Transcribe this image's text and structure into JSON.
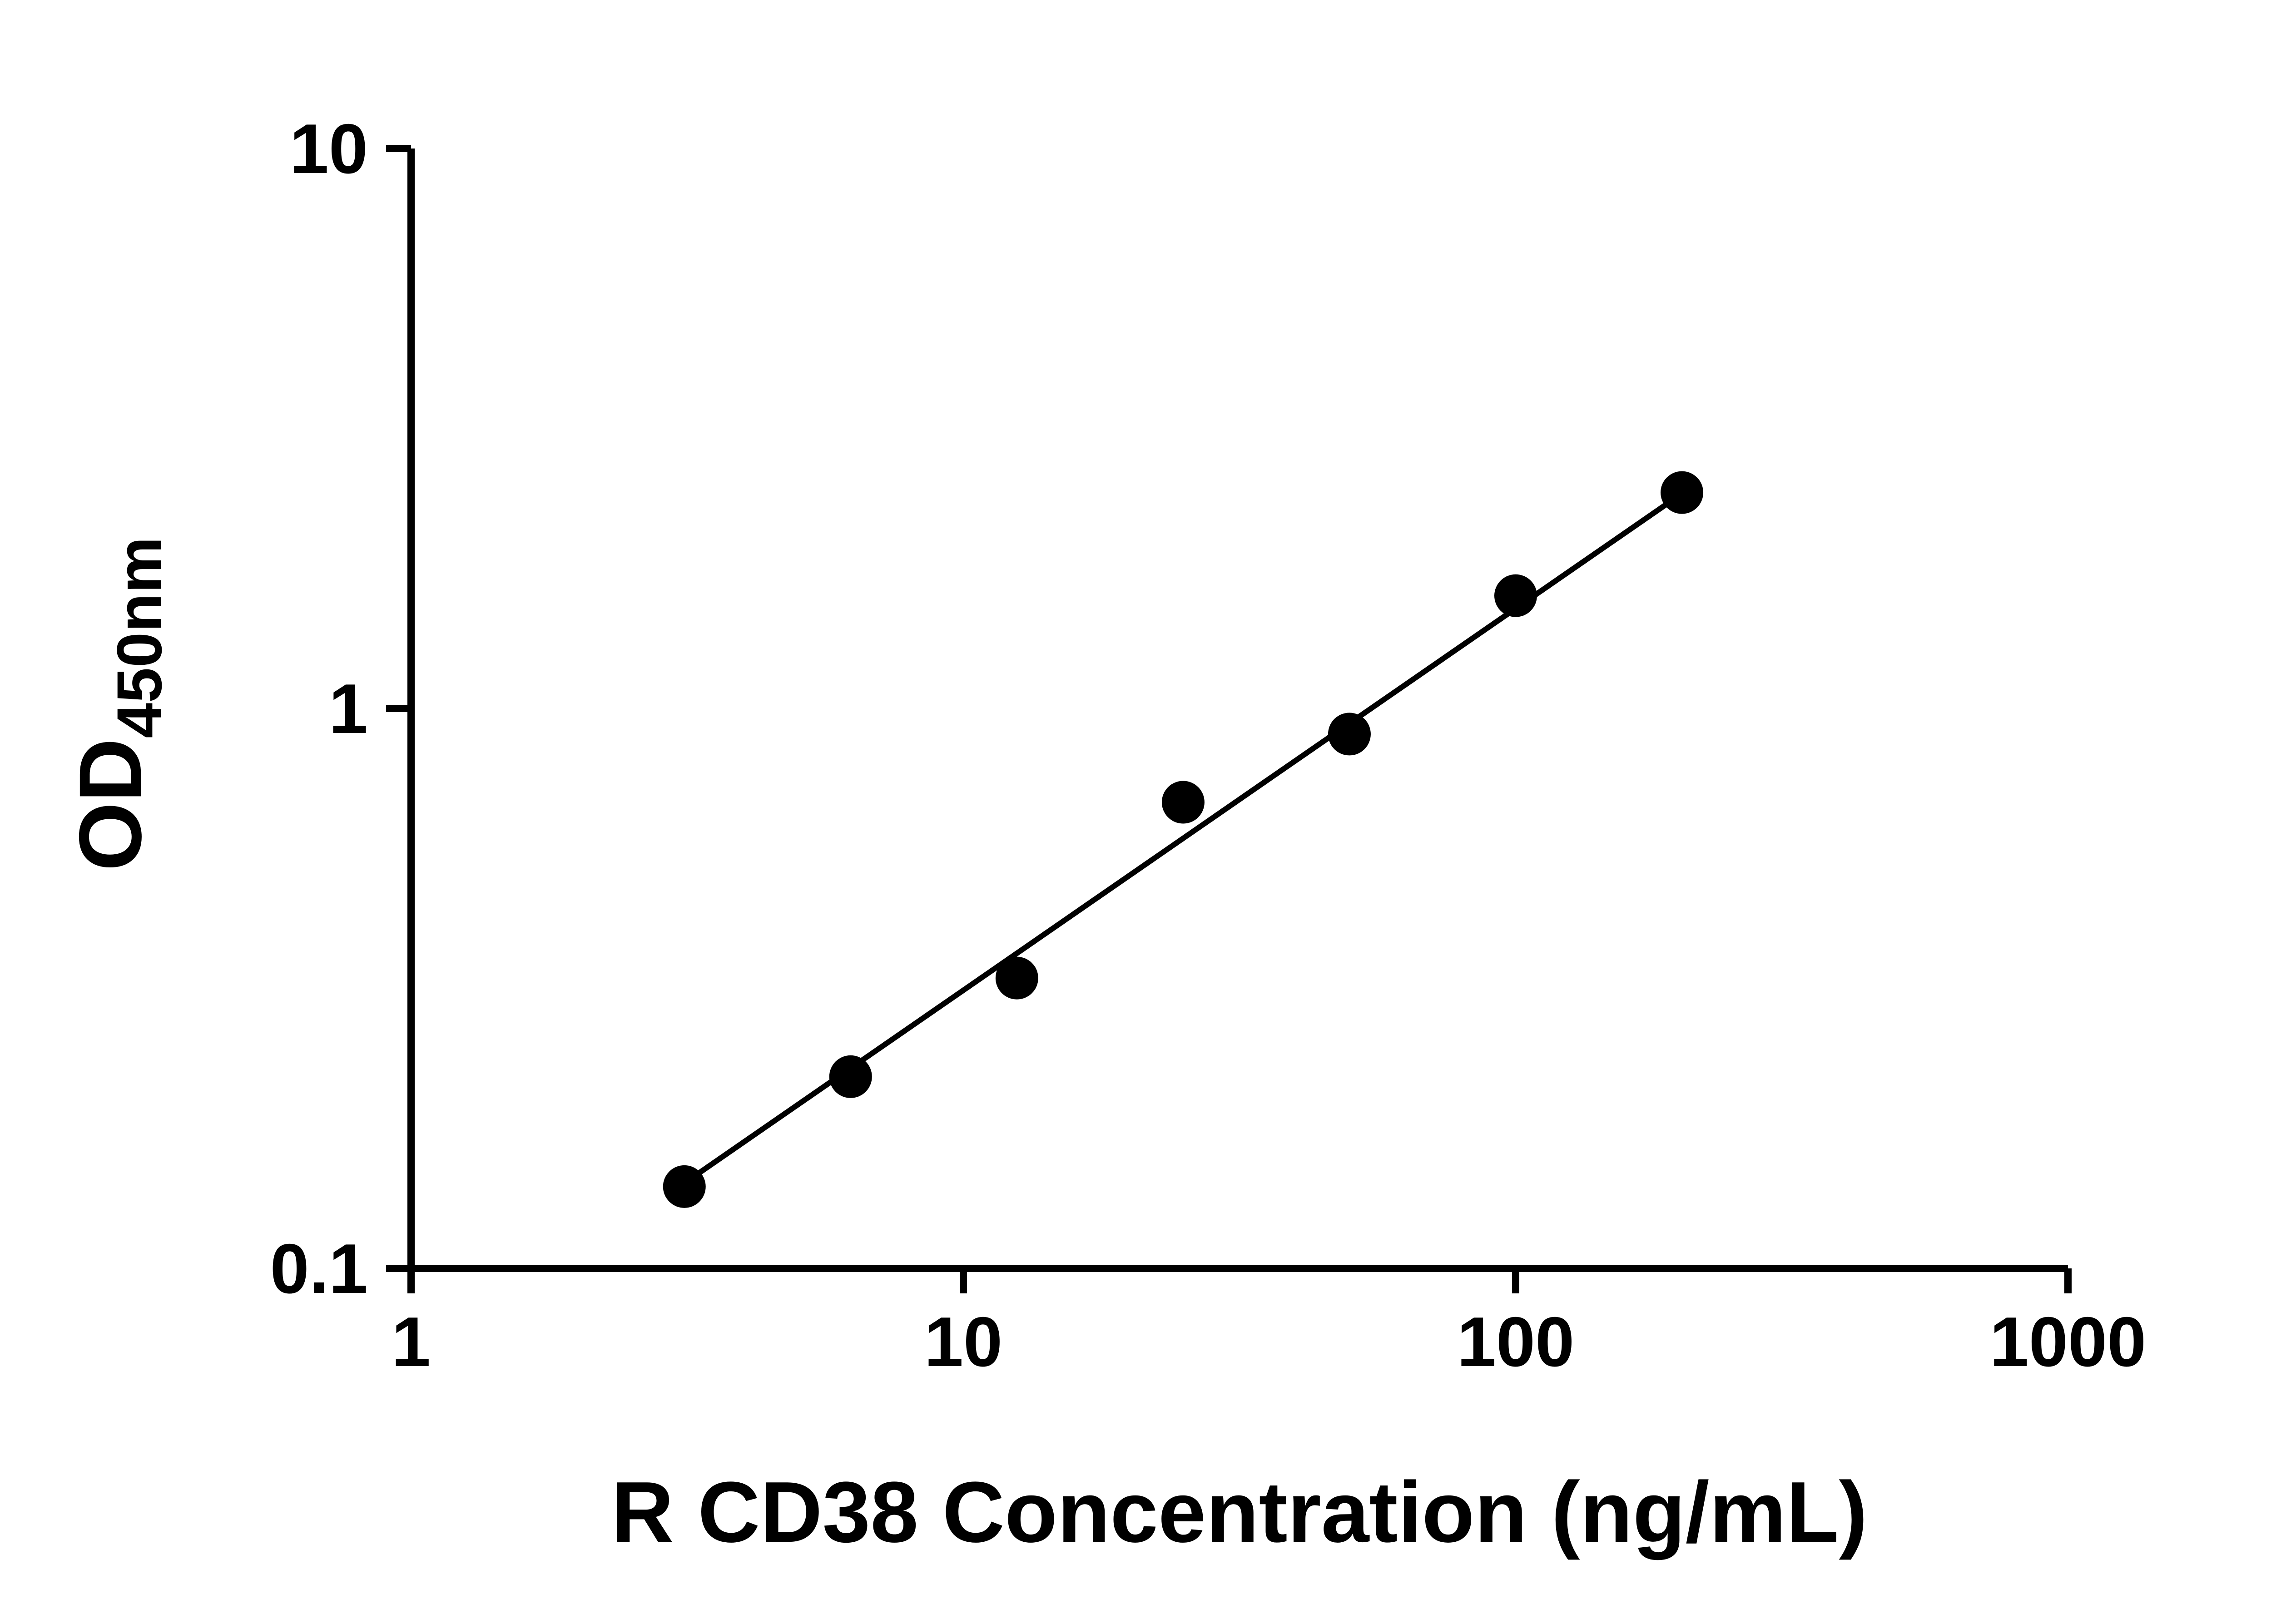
{
  "figure": {
    "background": "#ffffff",
    "foreground": "#000000"
  },
  "chart_data": {
    "type": "scatter",
    "title": "",
    "xlabel": "R CD38 Concentration (ng/mL)",
    "ylabel_base": "OD",
    "ylabel_sub": "450nm",
    "x_scale": "log",
    "y_scale": "log",
    "xlim": [
      1,
      1000
    ],
    "ylim": [
      0.1,
      10
    ],
    "grid": false,
    "legend": false,
    "x_ticks": [
      {
        "value": 1,
        "label": "1"
      },
      {
        "value": 10,
        "label": "10"
      },
      {
        "value": 100,
        "label": "100"
      },
      {
        "value": 1000,
        "label": "1000"
      }
    ],
    "y_ticks": [
      {
        "value": 0.1,
        "label": "0.1"
      },
      {
        "value": 1,
        "label": "1"
      },
      {
        "value": 10,
        "label": "10"
      }
    ],
    "series": [
      {
        "name": "standard-curve-points",
        "marker": "filled-circle",
        "color": "#000000",
        "x": [
          3.125,
          6.25,
          12.5,
          25,
          50,
          100,
          200
        ],
        "y": [
          0.14,
          0.22,
          0.33,
          0.68,
          0.9,
          1.59,
          2.43
        ]
      }
    ],
    "trend_line": {
      "name": "standard-curve-fit",
      "color": "#000000",
      "x_start": 3.125,
      "y_start": 0.142,
      "x_end": 200,
      "y_end": 2.42
    }
  }
}
